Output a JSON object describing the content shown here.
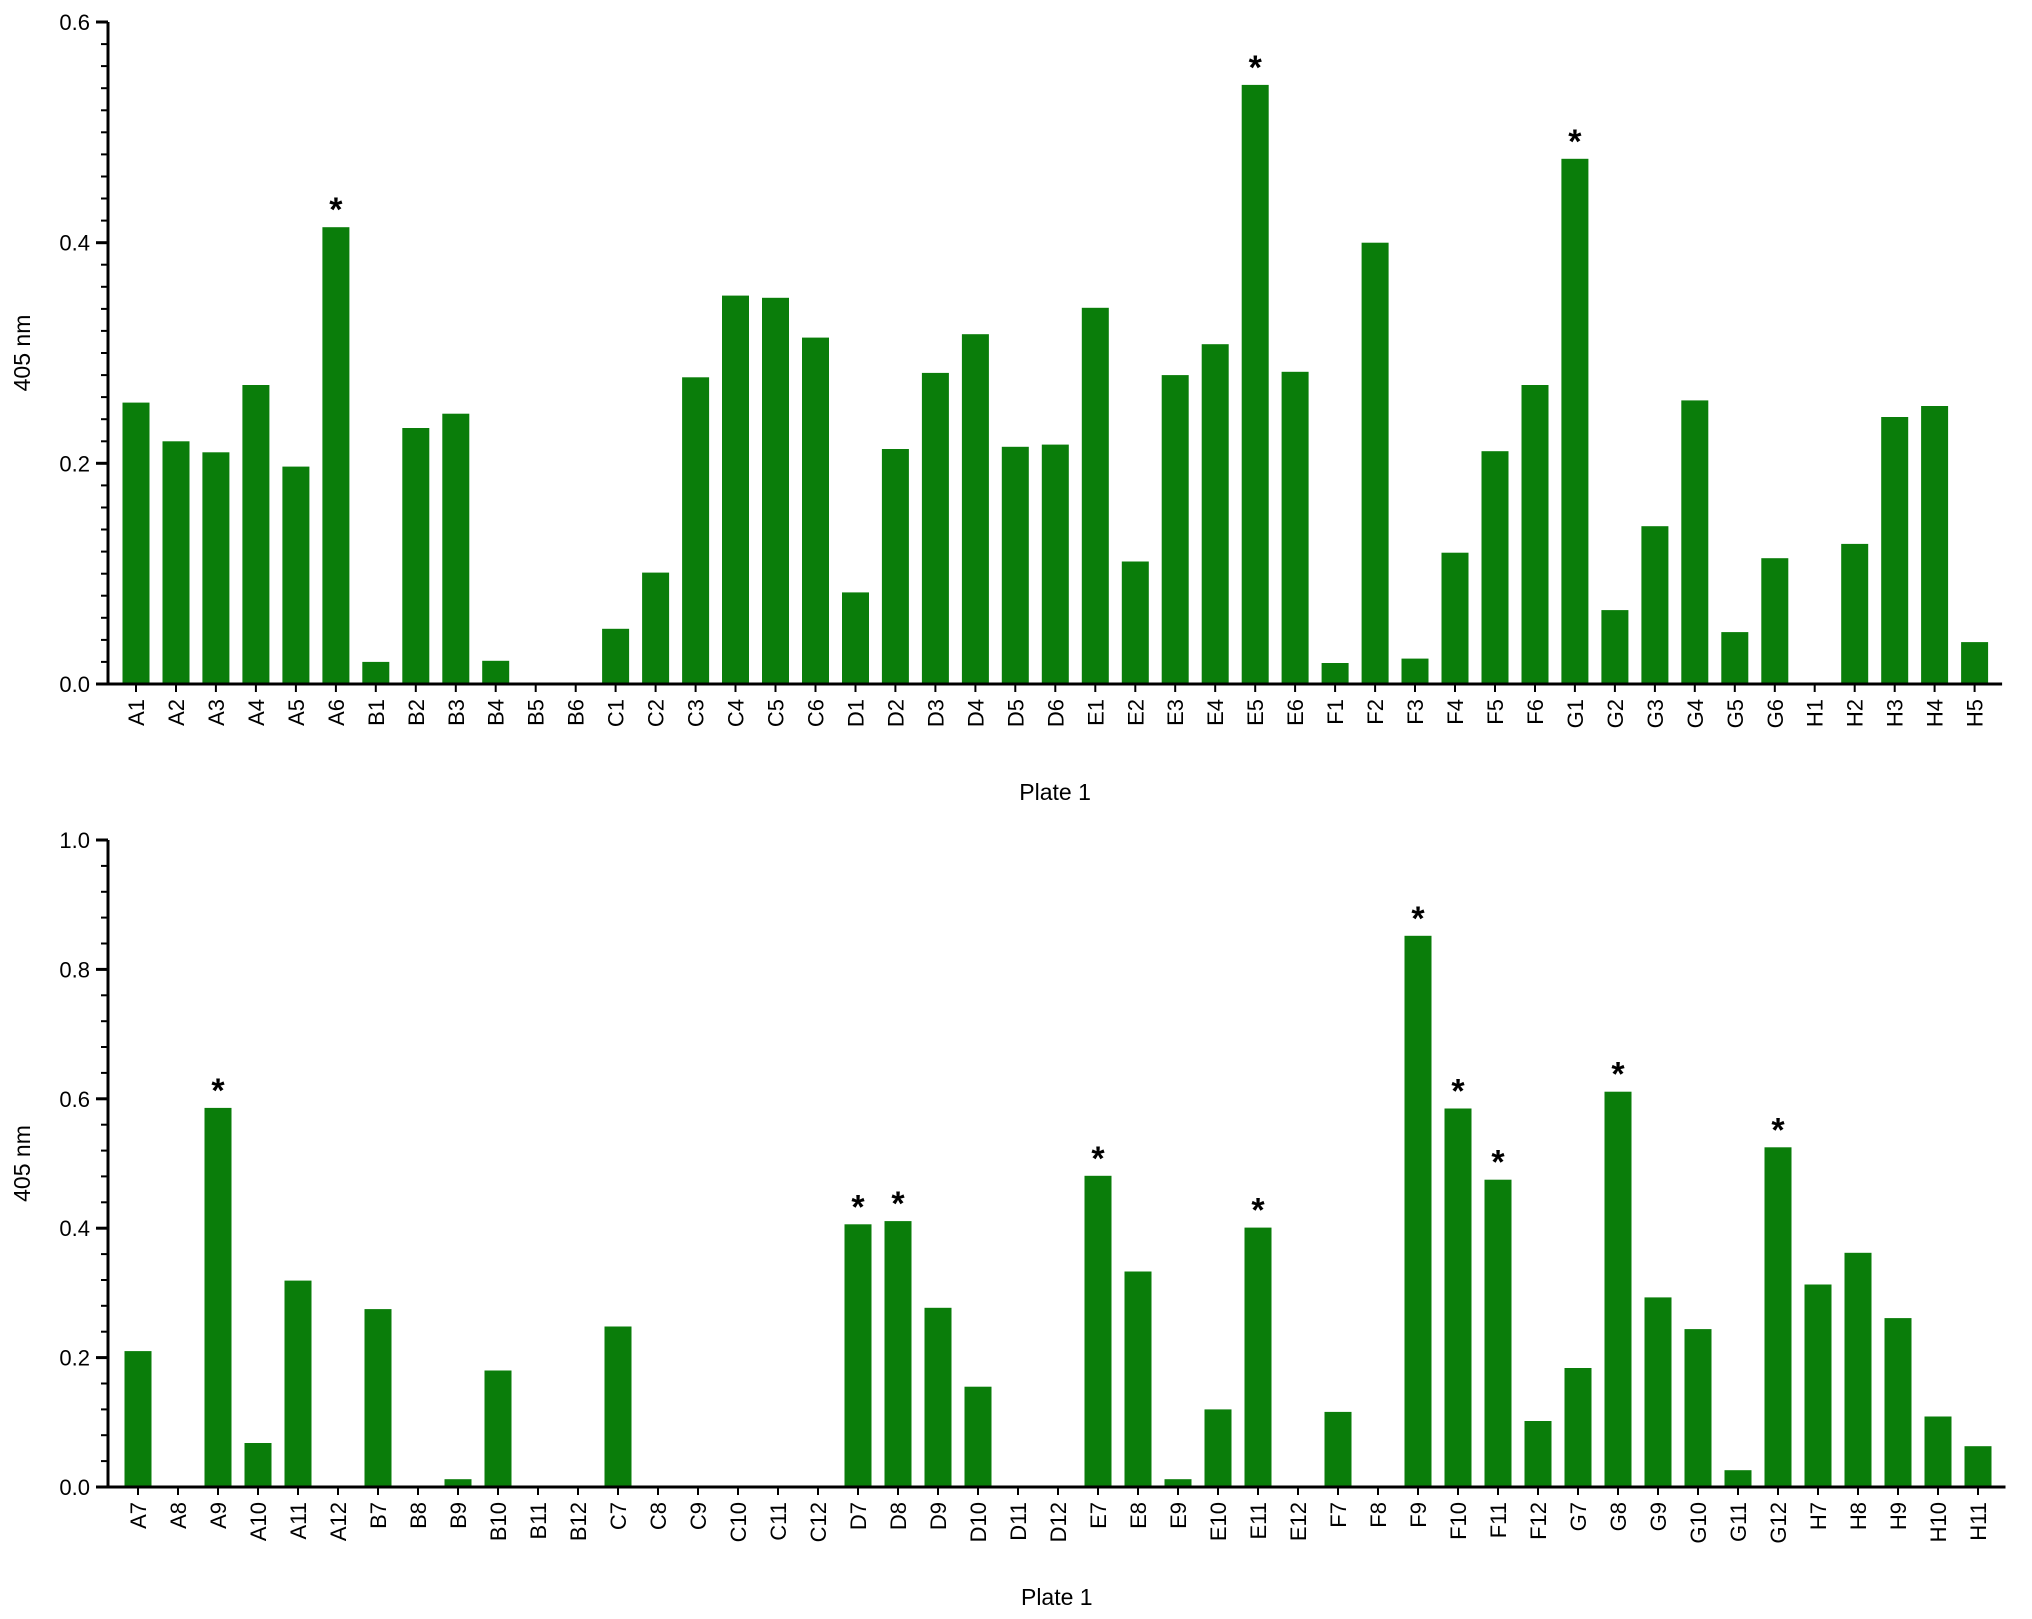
{
  "colors": {
    "bar": "#0a7d0a",
    "axis": "#000000",
    "text": "#000000"
  },
  "chart_data": [
    {
      "type": "bar",
      "title": "",
      "xlabel": "Plate 1",
      "ylabel": "405 nm",
      "ylim": [
        0,
        0.6
      ],
      "y_ticks": [
        "0.0",
        "0.2",
        "0.4",
        "0.6"
      ],
      "categories": [
        "A1",
        "A2",
        "A3",
        "A4",
        "A5",
        "A6",
        "B1",
        "B2",
        "B3",
        "B4",
        "B5",
        "B6",
        "C1",
        "C2",
        "C3",
        "C4",
        "C5",
        "C6",
        "D1",
        "D2",
        "D3",
        "D4",
        "D5",
        "D6",
        "E1",
        "E2",
        "E3",
        "E4",
        "E5",
        "E6",
        "F1",
        "F2",
        "F3",
        "F4",
        "F5",
        "F6",
        "G1",
        "G2",
        "G3",
        "G4",
        "G5",
        "G6",
        "H1",
        "H2",
        "H3",
        "H4",
        "H5"
      ],
      "values": [
        0.255,
        0.22,
        0.21,
        0.271,
        0.197,
        0.414,
        0.02,
        0.232,
        0.245,
        0.021,
        0,
        0,
        0.05,
        0.101,
        0.278,
        0.352,
        0.35,
        0.314,
        0.083,
        0.213,
        0.282,
        0.317,
        0.215,
        0.217,
        0.341,
        0.111,
        0.28,
        0.308,
        0.543,
        0.283,
        0.019,
        0.4,
        0.023,
        0.119,
        0.211,
        0.271,
        0.476,
        0.067,
        0.143,
        0.257,
        0.047,
        0.114,
        0,
        0.127,
        0.242,
        0.252,
        0.038
      ],
      "significant": [
        "A6",
        "E5",
        "G1"
      ],
      "significance_marker": "*",
      "grid": false,
      "legend": "none"
    },
    {
      "type": "bar",
      "title": "",
      "xlabel": "Plate 1",
      "ylabel": "405 nm",
      "ylim": [
        0,
        1.0
      ],
      "y_ticks": [
        "0.0",
        "0.2",
        "0.4",
        "0.6",
        "0.8",
        "1.0"
      ],
      "categories": [
        "A7",
        "A8",
        "A9",
        "A10",
        "A11",
        "A12",
        "B7",
        "B8",
        "B9",
        "B10",
        "B11",
        "B12",
        "C7",
        "C8",
        "C9",
        "C10",
        "C11",
        "C12",
        "D7",
        "D8",
        "D9",
        "D10",
        "D11",
        "D12",
        "E7",
        "E8",
        "E9",
        "E10",
        "E11",
        "E12",
        "F7",
        "F8",
        "F9",
        "F10",
        "F11",
        "F12",
        "G7",
        "G8",
        "G9",
        "G10",
        "G11",
        "G12",
        "H7",
        "H8",
        "H9",
        "H10",
        "H11"
      ],
      "values": [
        0.21,
        0,
        0.586,
        0.068,
        0.319,
        0,
        0.275,
        0,
        0.012,
        0.18,
        0,
        0,
        0.248,
        0,
        0,
        0,
        0,
        0,
        0.406,
        0.411,
        0.277,
        0.155,
        0,
        0,
        0.481,
        0.333,
        0.012,
        0.12,
        0.401,
        0,
        0.116,
        0,
        0.852,
        0.585,
        0.475,
        0.102,
        0.184,
        0.611,
        0.293,
        0.244,
        0.026,
        0.525,
        0.313,
        0.362,
        0.261,
        0.109,
        0.063
      ],
      "significant": [
        "A9",
        "D7",
        "D8",
        "E7",
        "E11",
        "F9",
        "F10",
        "F11",
        "G8",
        "G12"
      ],
      "significance_marker": "*",
      "grid": false,
      "legend": "none"
    }
  ]
}
